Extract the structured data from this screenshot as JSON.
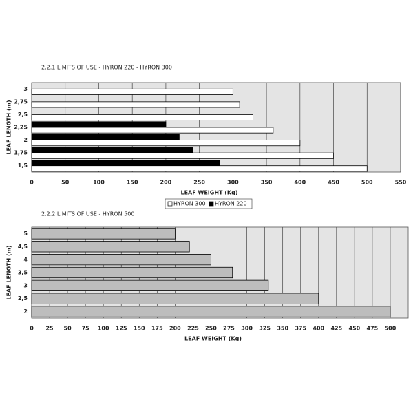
{
  "chart_data": [
    {
      "type": "hbar",
      "title": "2.2.1  LIMITS OF USE - HYRON 220 - HYRON 300",
      "x_label": "LEAF WEIGHT (Kg)",
      "y_label": "LEAF LENGTH (m)",
      "categories": [
        "3",
        "2,75",
        "2,5",
        "2,25",
        "2",
        "1,75",
        "1,5"
      ],
      "series": [
        {
          "name": "HYRON 220",
          "color": "#000000",
          "values": [
            null,
            null,
            null,
            200,
            220,
            240,
            280
          ]
        },
        {
          "name": "HYRON 300",
          "color": "#ffffff",
          "values": [
            300,
            310,
            330,
            360,
            400,
            450,
            500
          ]
        }
      ],
      "xlim": [
        0,
        550
      ],
      "xticks": [
        0,
        50,
        100,
        150,
        200,
        250,
        300,
        350,
        400,
        450,
        500,
        550
      ],
      "grid": true,
      "legend": "bottom"
    },
    {
      "type": "hbar",
      "title": "2.2.2  LIMITS OF USE - HYRON 500",
      "x_label": "LEAF WEIGHT (Kg)",
      "y_label": "LEAF LENGTH (m)",
      "categories": [
        "5",
        "4,5",
        "4",
        "3,5",
        "3",
        "2,5",
        "2"
      ],
      "series": [
        {
          "color": "#bdbdbd",
          "values": [
            200,
            220,
            250,
            280,
            330,
            400,
            500
          ]
        }
      ],
      "xlim": [
        0,
        525
      ],
      "xticks": [
        0,
        25,
        50,
        75,
        100,
        125,
        150,
        175,
        200,
        225,
        250,
        275,
        300,
        325,
        350,
        375,
        400,
        425,
        450,
        475,
        500
      ],
      "grid": true
    }
  ]
}
